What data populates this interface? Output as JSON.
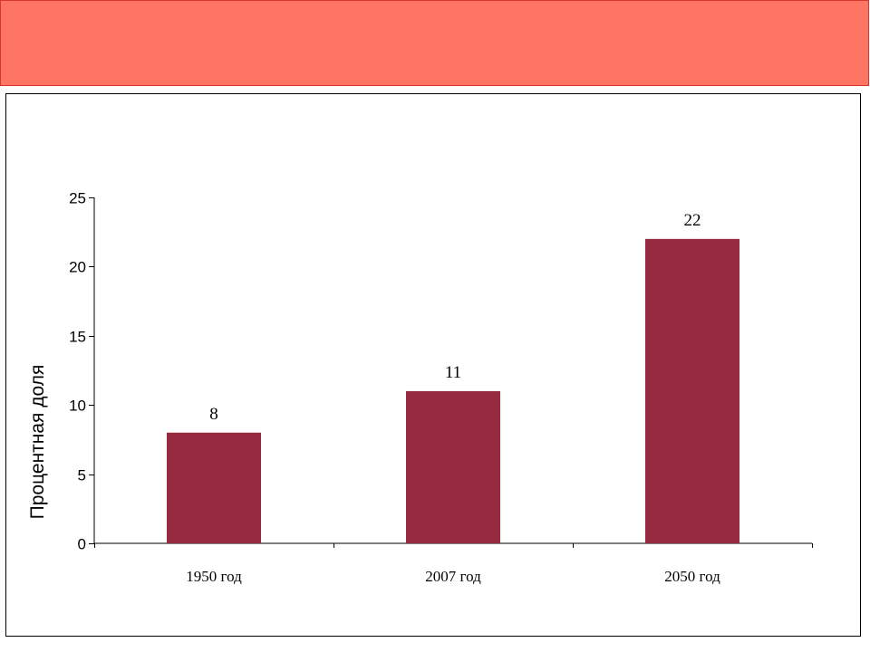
{
  "slide": {
    "header_color": "#FF7563",
    "background": "#FFFFFF"
  },
  "chart_data": {
    "type": "bar",
    "categories": [
      "1950 год",
      "2007 год",
      "2050 год"
    ],
    "values": [
      8,
      11,
      22
    ],
    "title": "",
    "xlabel": "",
    "ylabel": "Процентная доля",
    "ylim": [
      0,
      25
    ],
    "yticks": [
      0,
      5,
      10,
      15,
      20,
      25
    ],
    "data_labels": true,
    "grid": false,
    "legend": false,
    "bar_color": "#962B3F"
  }
}
